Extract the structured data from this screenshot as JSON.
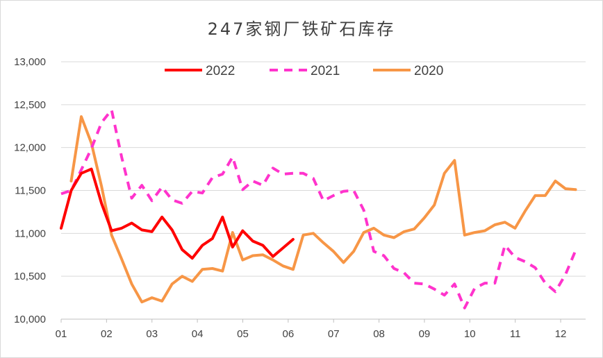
{
  "chart_data": {
    "type": "line",
    "title": "247家钢厂铁矿石库存",
    "xlabel": "",
    "ylabel": "",
    "x_ticks": [
      "01",
      "02",
      "03",
      "04",
      "05",
      "06",
      "07",
      "08",
      "09",
      "10",
      "11",
      "12"
    ],
    "x_unit": "week_of_year",
    "x_range": [
      1,
      53
    ],
    "ylim": [
      10000,
      13000
    ],
    "y_ticks": [
      "10,000",
      "10,500",
      "11,000",
      "11,500",
      "12,000",
      "12,500",
      "13,000"
    ],
    "grid": "horizontal",
    "legend_position": "top",
    "series": [
      {
        "name": "2022",
        "style": "solid",
        "color": "#ff0000",
        "points": [
          [
            1,
            11060
          ],
          [
            2,
            11500
          ],
          [
            3,
            11700
          ],
          [
            4,
            11750
          ],
          [
            5,
            11350
          ],
          [
            6,
            11030
          ],
          [
            7,
            11060
          ],
          [
            8,
            11120
          ],
          [
            9,
            11040
          ],
          [
            10,
            11020
          ],
          [
            11,
            11190
          ],
          [
            12,
            11040
          ],
          [
            13,
            10810
          ],
          [
            14,
            10710
          ],
          [
            15,
            10860
          ],
          [
            16,
            10940
          ],
          [
            17,
            11190
          ],
          [
            18,
            10840
          ],
          [
            19,
            11030
          ],
          [
            20,
            10910
          ],
          [
            21,
            10860
          ],
          [
            22,
            10730
          ],
          [
            23,
            10830
          ],
          [
            24,
            10930
          ]
        ]
      },
      {
        "name": "2021",
        "style": "dashed",
        "color": "#ff33cc",
        "points": [
          [
            1,
            11460
          ],
          [
            2,
            11500
          ],
          [
            3,
            11740
          ],
          [
            4,
            11990
          ],
          [
            5,
            12290
          ],
          [
            6,
            12440
          ],
          [
            7,
            11890
          ],
          [
            8,
            11410
          ],
          [
            9,
            11560
          ],
          [
            10,
            11380
          ],
          [
            11,
            11540
          ],
          [
            12,
            11390
          ],
          [
            13,
            11350
          ],
          [
            14,
            11490
          ],
          [
            15,
            11470
          ],
          [
            16,
            11650
          ],
          [
            17,
            11690
          ],
          [
            18,
            11890
          ],
          [
            19,
            11510
          ],
          [
            20,
            11610
          ],
          [
            21,
            11560
          ],
          [
            22,
            11760
          ],
          [
            23,
            11690
          ],
          [
            24,
            11700
          ],
          [
            25,
            11700
          ],
          [
            26,
            11640
          ],
          [
            27,
            11380
          ],
          [
            28,
            11440
          ],
          [
            29,
            11490
          ],
          [
            30,
            11500
          ],
          [
            31,
            11270
          ],
          [
            32,
            10790
          ],
          [
            33,
            10740
          ],
          [
            34,
            10590
          ],
          [
            35,
            10540
          ],
          [
            36,
            10420
          ],
          [
            37,
            10410
          ],
          [
            38,
            10350
          ],
          [
            39,
            10280
          ],
          [
            40,
            10410
          ],
          [
            41,
            10130
          ],
          [
            42,
            10360
          ],
          [
            43,
            10420
          ],
          [
            44,
            10420
          ],
          [
            45,
            10860
          ],
          [
            46,
            10720
          ],
          [
            47,
            10670
          ],
          [
            48,
            10600
          ],
          [
            49,
            10420
          ],
          [
            50,
            10320
          ],
          [
            51,
            10520
          ],
          [
            52,
            10800
          ]
        ]
      },
      {
        "name": "2020",
        "style": "solid",
        "color": "#f79646",
        "points": [
          [
            2,
            11610
          ],
          [
            3,
            12360
          ],
          [
            4,
            12050
          ],
          [
            5,
            11550
          ],
          [
            6,
            10980
          ],
          [
            7,
            10700
          ],
          [
            8,
            10410
          ],
          [
            9,
            10200
          ],
          [
            10,
            10250
          ],
          [
            11,
            10210
          ],
          [
            12,
            10410
          ],
          [
            13,
            10500
          ],
          [
            14,
            10440
          ],
          [
            15,
            10580
          ],
          [
            16,
            10590
          ],
          [
            17,
            10560
          ],
          [
            18,
            11010
          ],
          [
            19,
            10690
          ],
          [
            20,
            10740
          ],
          [
            21,
            10750
          ],
          [
            22,
            10690
          ],
          [
            23,
            10620
          ],
          [
            24,
            10580
          ],
          [
            25,
            10980
          ],
          [
            26,
            11000
          ],
          [
            27,
            10890
          ],
          [
            28,
            10790
          ],
          [
            29,
            10660
          ],
          [
            30,
            10790
          ],
          [
            31,
            11010
          ],
          [
            32,
            11060
          ],
          [
            33,
            10980
          ],
          [
            34,
            10950
          ],
          [
            35,
            11020
          ],
          [
            36,
            11050
          ],
          [
            37,
            11180
          ],
          [
            38,
            11330
          ],
          [
            39,
            11700
          ],
          [
            40,
            11850
          ],
          [
            41,
            10980
          ],
          [
            42,
            11010
          ],
          [
            43,
            11030
          ],
          [
            44,
            11100
          ],
          [
            45,
            11130
          ],
          [
            46,
            11060
          ],
          [
            47,
            11260
          ],
          [
            48,
            11440
          ],
          [
            49,
            11440
          ],
          [
            50,
            11610
          ],
          [
            51,
            11520
          ],
          [
            52,
            11510
          ]
        ]
      }
    ]
  }
}
